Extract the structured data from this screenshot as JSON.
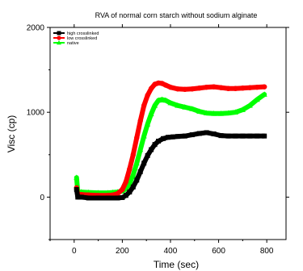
{
  "chart_data": {
    "type": "line",
    "title": "RVA of normal corn starch without sodium alginate",
    "xlabel": "Time (sec)",
    "ylabel": "Visc (cp)",
    "xlim": [
      -100,
      880
    ],
    "ylim": [
      -500,
      2000
    ],
    "xticks": [
      0,
      200,
      400,
      600,
      800
    ],
    "yticks": [
      0,
      1000,
      2000
    ],
    "legend_position": "top-left",
    "grid": false,
    "series": [
      {
        "name": "high crosslinked",
        "color": "#000000",
        "marker": "square",
        "x": [
          10,
          15,
          30,
          60,
          100,
          140,
          180,
          200,
          215,
          230,
          245,
          260,
          275,
          290,
          305,
          320,
          335,
          350,
          370,
          390,
          410,
          430,
          460,
          490,
          520,
          550,
          580,
          610,
          640,
          670,
          700,
          730,
          760,
          790
        ],
        "y": [
          90,
          0,
          0,
          -10,
          -10,
          -10,
          -10,
          -5,
          20,
          60,
          120,
          200,
          300,
          400,
          490,
          560,
          620,
          660,
          690,
          705,
          710,
          715,
          720,
          735,
          750,
          760,
          745,
          725,
          720,
          720,
          720,
          720,
          720,
          720
        ]
      },
      {
        "name": "low crosslinked",
        "color": "#ff0000",
        "marker": "circle",
        "x": [
          10,
          15,
          30,
          60,
          100,
          140,
          160,
          180,
          200,
          215,
          230,
          245,
          260,
          275,
          290,
          305,
          320,
          335,
          350,
          365,
          380,
          400,
          430,
          460,
          490,
          520,
          550,
          580,
          610,
          640,
          670,
          700,
          730,
          760,
          790
        ],
        "y": [
          110,
          30,
          30,
          25,
          20,
          20,
          25,
          40,
          90,
          180,
          330,
          500,
          700,
          900,
          1080,
          1200,
          1280,
          1330,
          1345,
          1340,
          1320,
          1295,
          1275,
          1270,
          1275,
          1285,
          1295,
          1300,
          1290,
          1280,
          1280,
          1285,
          1290,
          1295,
          1300
        ]
      },
      {
        "name": "native",
        "color": "#00ff00",
        "marker": "triangle",
        "x": [
          10,
          15,
          30,
          60,
          100,
          140,
          160,
          180,
          200,
          215,
          230,
          245,
          260,
          275,
          290,
          305,
          320,
          335,
          350,
          365,
          380,
          400,
          430,
          460,
          490,
          520,
          550,
          580,
          610,
          640,
          670,
          700,
          730,
          760,
          790
        ],
        "y": [
          230,
          60,
          60,
          55,
          50,
          50,
          55,
          60,
          70,
          100,
          160,
          260,
          400,
          560,
          720,
          860,
          980,
          1080,
          1140,
          1150,
          1140,
          1110,
          1080,
          1060,
          1040,
          1010,
          990,
          985,
          985,
          990,
          1000,
          1030,
          1080,
          1150,
          1210
        ]
      }
    ]
  }
}
